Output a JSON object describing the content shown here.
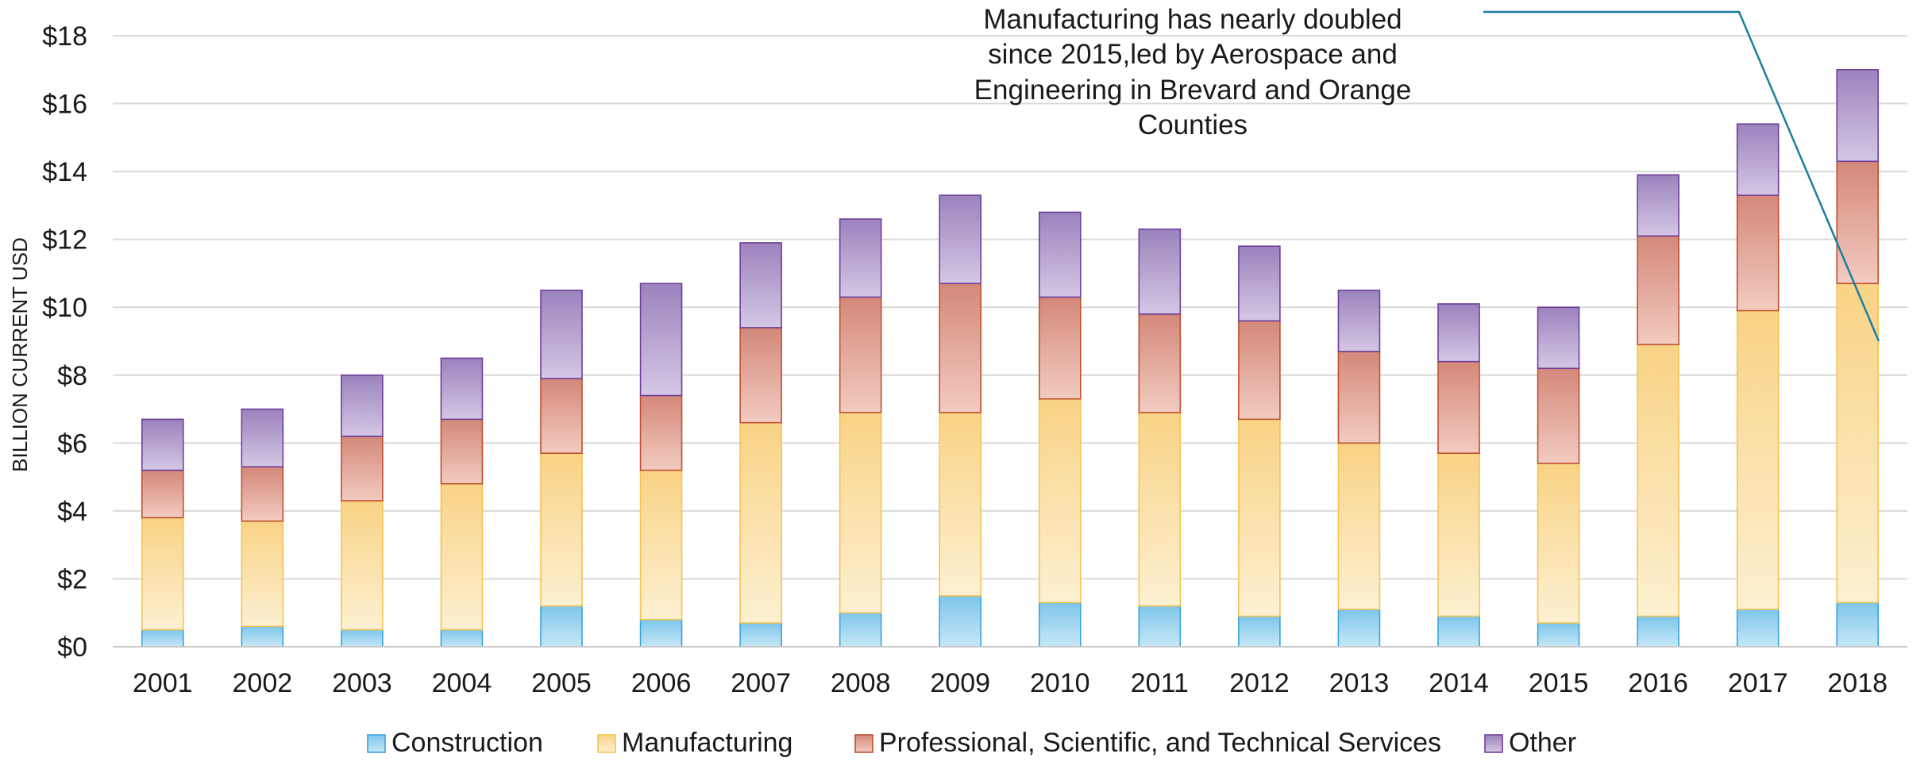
{
  "chart_data": {
    "type": "bar",
    "stacked": true,
    "title": "",
    "xlabel": "",
    "ylabel": "BILLION CURRENT USD",
    "ylim": [
      0,
      18
    ],
    "y_tick_step": 2,
    "y_tick_prefix": "$",
    "grid": true,
    "legend_position": "bottom",
    "categories": [
      "2001",
      "2002",
      "2003",
      "2004",
      "2005",
      "2006",
      "2007",
      "2008",
      "2009",
      "2010",
      "2011",
      "2012",
      "2013",
      "2014",
      "2015",
      "2016",
      "2017",
      "2018"
    ],
    "series": [
      {
        "name": "Construction",
        "color": "#8ecfee",
        "edge": "#3aa5d8",
        "values": [
          0.5,
          0.6,
          0.5,
          0.5,
          1.2,
          0.8,
          0.7,
          1.0,
          1.5,
          1.3,
          1.2,
          0.9,
          1.1,
          0.9,
          0.7,
          0.9,
          1.1,
          1.3
        ]
      },
      {
        "name": "Manufacturing",
        "color": "#fbdfa0",
        "edge": "#f4c453",
        "values": [
          3.3,
          3.1,
          3.8,
          4.3,
          4.5,
          4.4,
          5.9,
          5.9,
          5.4,
          6.0,
          5.7,
          5.8,
          4.9,
          4.8,
          4.7,
          8.0,
          8.8,
          9.4
        ]
      },
      {
        "name": "Professional, Scientific, and Technical Services",
        "color": "#dfa090",
        "edge": "#c0502f",
        "values": [
          1.4,
          1.6,
          1.9,
          1.9,
          2.2,
          2.2,
          2.8,
          3.4,
          3.8,
          3.0,
          2.9,
          2.9,
          2.7,
          2.7,
          2.8,
          3.2,
          3.4,
          3.6
        ]
      },
      {
        "name": "Other",
        "color": "#b29dcc",
        "edge": "#6e3f9a",
        "values": [
          1.5,
          1.7,
          1.8,
          1.8,
          2.6,
          3.3,
          2.5,
          2.3,
          2.6,
          2.5,
          2.5,
          2.2,
          1.8,
          1.7,
          1.8,
          1.8,
          2.1,
          2.7
        ]
      }
    ],
    "annotation": {
      "lines": [
        "Manufacturing has nearly doubled",
        "since 2015,led by Aerospace and",
        "Engineering in Brevard and Orange",
        "Counties"
      ],
      "line_color": "#1b7ea1"
    }
  }
}
